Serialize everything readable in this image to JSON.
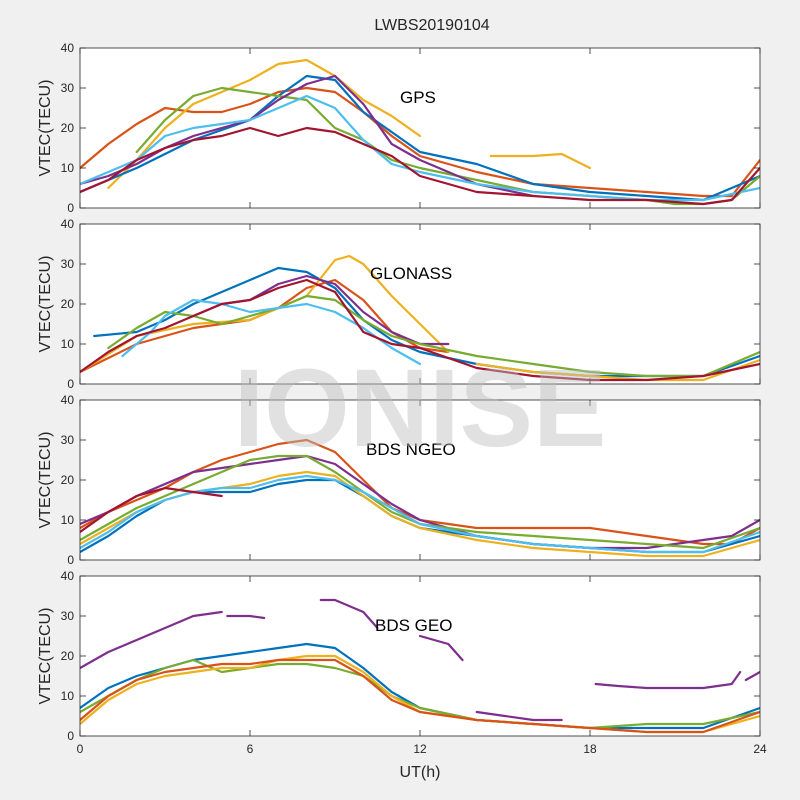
{
  "figure": {
    "title": "LWBS20190104",
    "watermark": "IONISE",
    "xlabel": "UT(h)",
    "background": "#f0f0f0",
    "axes_background": "#ffffff",
    "palette": [
      "#0072BD",
      "#D95319",
      "#EDB120",
      "#7E2F8E",
      "#77AC30",
      "#4DBEEE",
      "#A2142F"
    ]
  },
  "chart_data": [
    {
      "type": "line",
      "title": "GPS",
      "ylabel": "VTEC(TECU)",
      "xlim": [
        0,
        24
      ],
      "ylim": [
        0,
        40
      ],
      "xticks": [
        0,
        6,
        12,
        18,
        24
      ],
      "yticks": [
        0,
        10,
        20,
        30,
        40
      ],
      "grid": false,
      "series": [
        {
          "color": "#D95319",
          "x": [
            0,
            1,
            2,
            3,
            4,
            5,
            6,
            7,
            8,
            9,
            10,
            11,
            12,
            14,
            16,
            18,
            20,
            22,
            23,
            24
          ],
          "y": [
            10,
            16,
            21,
            25,
            24,
            24,
            26,
            29,
            30,
            29,
            24,
            18,
            13,
            9,
            6,
            5,
            4,
            3,
            3,
            12
          ]
        },
        {
          "color": "#EDB120",
          "x": [
            1,
            2,
            3,
            4,
            5,
            6,
            7,
            8,
            9,
            10,
            11,
            12
          ],
          "y": [
            5,
            12,
            20,
            26,
            29,
            32,
            36,
            37,
            33,
            27,
            23,
            18
          ]
        },
        {
          "color": "#EDB120",
          "x": [
            14.5,
            16,
            17,
            18
          ],
          "y": [
            13,
            13,
            13.5,
            10
          ]
        },
        {
          "color": "#0072BD",
          "x": [
            0,
            2,
            4,
            6,
            7,
            8,
            9,
            10,
            12,
            14,
            16,
            18,
            20,
            22,
            24
          ],
          "y": [
            4,
            10,
            17,
            22,
            28,
            33,
            32,
            24,
            14,
            11,
            6,
            4,
            3,
            2,
            8
          ]
        },
        {
          "color": "#77AC30",
          "x": [
            2,
            3,
            4,
            5,
            6,
            7,
            8,
            9,
            10,
            11,
            12,
            14,
            16,
            18,
            20,
            21,
            22,
            23,
            24
          ],
          "y": [
            14,
            22,
            28,
            30,
            29,
            28,
            27,
            20,
            17,
            12,
            10,
            7,
            4,
            3,
            2,
            1,
            1,
            2,
            8
          ]
        },
        {
          "color": "#7E2F8E",
          "x": [
            0,
            1,
            2,
            3,
            4,
            5,
            6,
            7,
            8,
            9,
            10,
            11,
            12,
            14,
            16
          ],
          "y": [
            6,
            8,
            11,
            15,
            18,
            20,
            22,
            27,
            31,
            33,
            26,
            16,
            12,
            6,
            3
          ]
        },
        {
          "color": "#4DBEEE",
          "x": [
            0,
            1,
            2,
            3,
            4,
            5,
            6,
            7,
            8,
            9,
            10,
            11,
            12,
            14,
            16,
            18,
            20,
            22,
            24
          ],
          "y": [
            6,
            9,
            12,
            18,
            20,
            21,
            22,
            25,
            28,
            25,
            17,
            11,
            9,
            6,
            4,
            3,
            2,
            2,
            5
          ]
        },
        {
          "color": "#A2142F",
          "x": [
            0,
            1,
            2,
            3,
            4,
            5,
            6,
            7,
            8,
            9,
            10,
            11,
            12,
            14,
            16,
            18,
            20,
            22,
            23,
            24
          ],
          "y": [
            4,
            7,
            12,
            15,
            17,
            18,
            20,
            18,
            20,
            19,
            16,
            13,
            8,
            4,
            3,
            2,
            2,
            1,
            2,
            10
          ]
        }
      ]
    },
    {
      "type": "line",
      "title": "GLONASS",
      "ylabel": "VTEC(TECU)",
      "xlim": [
        0,
        24
      ],
      "ylim": [
        0,
        40
      ],
      "xticks": [
        0,
        6,
        12,
        18,
        24
      ],
      "yticks": [
        0,
        10,
        20,
        30,
        40
      ],
      "grid": false,
      "series": [
        {
          "color": "#0072BD",
          "x": [
            0.5,
            2,
            3,
            4,
            5,
            6,
            7,
            8,
            9,
            10,
            11,
            12,
            14,
            16,
            18,
            20,
            22,
            24
          ],
          "y": [
            12,
            13,
            16,
            20,
            23,
            26,
            29,
            28,
            24,
            16,
            11,
            8,
            5,
            3,
            2,
            2,
            2,
            7
          ]
        },
        {
          "color": "#D95319",
          "x": [
            0,
            2,
            4,
            6,
            7,
            8,
            9,
            10,
            11,
            12,
            13
          ],
          "y": [
            3,
            10,
            14,
            16,
            19,
            24,
            26,
            21,
            13,
            9,
            8
          ]
        },
        {
          "color": "#EDB120",
          "x": [
            0,
            2,
            4,
            6,
            8,
            9,
            9.5,
            10,
            11,
            12,
            13
          ],
          "y": [
            3,
            12,
            15,
            16,
            22,
            31,
            32,
            30,
            22,
            15,
            8
          ]
        },
        {
          "color": "#EDB120",
          "x": [
            14,
            16,
            18,
            20,
            22,
            24
          ],
          "y": [
            5,
            3,
            2,
            1,
            1,
            6
          ]
        },
        {
          "color": "#7E2F8E",
          "x": [
            4,
            5,
            6,
            7,
            8,
            9,
            10,
            11,
            12,
            13
          ],
          "y": [
            17,
            20,
            21,
            25,
            27,
            25,
            18,
            13,
            10,
            10
          ]
        },
        {
          "color": "#77AC30",
          "x": [
            1,
            2,
            3,
            4,
            5,
            6,
            7,
            8,
            9,
            10,
            11,
            12,
            14,
            16,
            18,
            20,
            22,
            24
          ],
          "y": [
            9,
            14,
            18,
            17,
            15,
            17,
            19,
            22,
            21,
            16,
            12,
            10,
            7,
            5,
            3,
            2,
            2,
            8
          ]
        },
        {
          "color": "#4DBEEE",
          "x": [
            1.5,
            2.5,
            3,
            4,
            5,
            6,
            7,
            8,
            9,
            10,
            11,
            12
          ],
          "y": [
            7,
            13,
            17,
            21,
            20,
            18,
            19,
            20,
            18,
            14,
            9,
            5
          ]
        },
        {
          "color": "#A2142F",
          "x": [
            0,
            1,
            2,
            3,
            4,
            5,
            6,
            7,
            8,
            9,
            10,
            11,
            12,
            14,
            16,
            18,
            20,
            22,
            24
          ],
          "y": [
            3,
            8,
            12,
            14,
            17,
            20,
            21,
            24,
            26,
            23,
            13,
            10,
            9,
            4,
            2,
            1,
            1,
            2,
            5
          ]
        }
      ]
    },
    {
      "type": "line",
      "title": "BDS NGEO",
      "ylabel": "VTEC(TECU)",
      "xlim": [
        0,
        24
      ],
      "ylim": [
        0,
        40
      ],
      "xticks": [
        0,
        6,
        12,
        18,
        24
      ],
      "yticks": [
        0,
        10,
        20,
        30,
        40
      ],
      "grid": false,
      "series": [
        {
          "color": "#D95319",
          "x": [
            0,
            1,
            2,
            3,
            4,
            5,
            6,
            7,
            8,
            9,
            10,
            11,
            12,
            14,
            16,
            18,
            20,
            22,
            23,
            24
          ],
          "y": [
            8,
            12,
            15,
            18,
            22,
            25,
            27,
            29,
            30,
            27,
            20,
            13,
            10,
            8,
            8,
            8,
            6,
            4,
            4,
            8
          ]
        },
        {
          "color": "#7E2F8E",
          "x": [
            0,
            1,
            2,
            3,
            4,
            5,
            6,
            7,
            8,
            9,
            10,
            11,
            12,
            14,
            16,
            18,
            20,
            22,
            23,
            24
          ],
          "y": [
            9,
            12,
            16,
            19,
            22,
            23,
            24,
            25,
            26,
            24,
            19,
            14,
            10,
            6,
            4,
            3,
            3,
            5,
            6,
            10
          ]
        },
        {
          "color": "#0072BD",
          "x": [
            0,
            1,
            2,
            3,
            4,
            5,
            6,
            7,
            8,
            9,
            10,
            11,
            12,
            14,
            16,
            18,
            20,
            22,
            24
          ],
          "y": [
            2,
            6,
            11,
            15,
            17,
            17,
            17,
            19,
            20,
            20,
            16,
            11,
            8,
            6,
            4,
            3,
            2,
            2,
            6
          ]
        },
        {
          "color": "#77AC30",
          "x": [
            0,
            1,
            2,
            3,
            4,
            5,
            6,
            7,
            8,
            9,
            10,
            11,
            12,
            14,
            16,
            18,
            20,
            22,
            24
          ],
          "y": [
            5,
            9,
            13,
            16,
            19,
            22,
            25,
            26,
            26,
            22,
            17,
            12,
            9,
            7,
            6,
            5,
            4,
            3,
            8
          ]
        },
        {
          "color": "#EDB120",
          "x": [
            0,
            1,
            2,
            3,
            4,
            5,
            6,
            7,
            8,
            9,
            10,
            11,
            12,
            14,
            16,
            18,
            20,
            22,
            24
          ],
          "y": [
            4,
            8,
            12,
            15,
            17,
            18,
            19,
            21,
            22,
            21,
            16,
            11,
            8,
            5,
            3,
            2,
            1,
            1,
            5
          ]
        },
        {
          "color": "#4DBEEE",
          "x": [
            0,
            1,
            2,
            3,
            4,
            5,
            6,
            7,
            8,
            9,
            10,
            11,
            12,
            14,
            16,
            18,
            20,
            22,
            24
          ],
          "y": [
            3,
            7,
            12,
            15,
            17,
            18,
            18,
            20,
            21,
            20,
            17,
            13,
            9,
            6,
            4,
            3,
            2,
            2,
            7
          ]
        },
        {
          "color": "#A2142F",
          "x": [
            0,
            1,
            2,
            3,
            4,
            5
          ],
          "y": [
            7,
            12,
            16,
            18,
            17,
            16
          ]
        }
      ]
    },
    {
      "type": "line",
      "title": "BDS GEO",
      "ylabel": "VTEC(TECU)",
      "xlim": [
        0,
        24
      ],
      "ylim": [
        0,
        40
      ],
      "xticks": [
        0,
        6,
        12,
        18,
        24
      ],
      "yticks": [
        0,
        10,
        20,
        30,
        40
      ],
      "grid": false,
      "series": [
        {
          "color": "#7E2F8E",
          "x": [
            0,
            1,
            2,
            3,
            4,
            5
          ],
          "y": [
            17,
            21,
            24,
            27,
            30,
            31
          ]
        },
        {
          "color": "#7E2F8E",
          "x": [
            5.2,
            6,
            6.5
          ],
          "y": [
            30,
            30,
            29.5
          ]
        },
        {
          "color": "#7E2F8E",
          "x": [
            8.5,
            9,
            10,
            10.5
          ],
          "y": [
            34,
            34,
            31,
            27
          ]
        },
        {
          "color": "#7E2F8E",
          "x": [
            12,
            12.5,
            13,
            13.5
          ],
          "y": [
            25,
            24,
            23,
            19
          ]
        },
        {
          "color": "#7E2F8E",
          "x": [
            14,
            15,
            16,
            17
          ],
          "y": [
            6,
            5,
            4,
            4
          ]
        },
        {
          "color": "#7E2F8E",
          "x": [
            18.2,
            19,
            20,
            21,
            22,
            23,
            23.3
          ],
          "y": [
            13,
            12.5,
            12,
            12,
            12,
            13,
            16
          ]
        },
        {
          "color": "#7E2F8E",
          "x": [
            23.5,
            24
          ],
          "y": [
            14,
            16
          ]
        },
        {
          "color": "#0072BD",
          "x": [
            0,
            1,
            2,
            3,
            4,
            5,
            6,
            7,
            8,
            9,
            10,
            11,
            12,
            14,
            16,
            18,
            20,
            22,
            24
          ],
          "y": [
            7,
            12,
            15,
            17,
            19,
            20,
            21,
            22,
            23,
            22,
            17,
            11,
            7,
            4,
            3,
            2,
            2,
            2,
            7
          ]
        },
        {
          "color": "#77AC30",
          "x": [
            0,
            1,
            2,
            3,
            4,
            5,
            6,
            7,
            8,
            9,
            10,
            11,
            12,
            14,
            16,
            18,
            20,
            22,
            24
          ],
          "y": [
            6,
            10,
            14,
            17,
            19,
            16,
            17,
            18,
            18,
            17,
            15,
            10,
            7,
            4,
            3,
            2,
            3,
            3,
            6
          ]
        },
        {
          "color": "#EDB120",
          "x": [
            0,
            1,
            2,
            3,
            4,
            5,
            6,
            7,
            8,
            9,
            10,
            11,
            12,
            14,
            16,
            18,
            20,
            22,
            24
          ],
          "y": [
            3,
            9,
            13,
            15,
            16,
            17,
            17,
            19,
            20,
            20,
            16,
            10,
            6,
            4,
            3,
            2,
            1,
            1,
            5
          ]
        },
        {
          "color": "#D95319",
          "x": [
            0,
            1,
            2,
            3,
            4,
            5,
            6,
            7,
            8,
            9,
            10,
            11,
            12,
            14,
            16,
            18,
            20,
            22,
            24
          ],
          "y": [
            4,
            10,
            14,
            16,
            17,
            18,
            18,
            19,
            19,
            19,
            15,
            9,
            6,
            4,
            3,
            2,
            1,
            1,
            6
          ]
        }
      ]
    }
  ]
}
